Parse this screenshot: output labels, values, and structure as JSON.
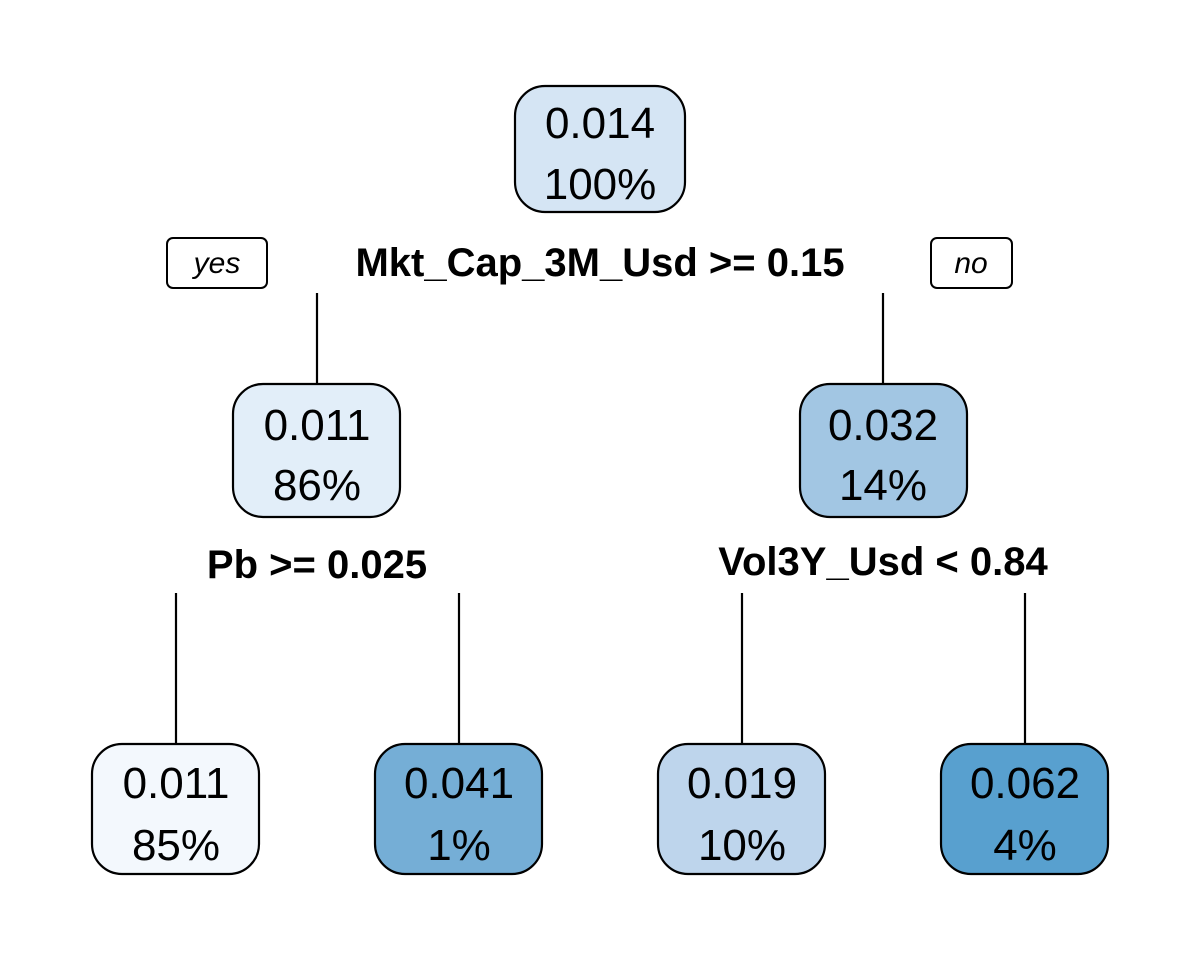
{
  "tree": {
    "yes_label": "yes",
    "no_label": "no",
    "root": {
      "value": "0.014",
      "percent": "100%",
      "color": "#d5e5f4",
      "split": "Mkt_Cap_3M_Usd >= 0.15"
    },
    "left": {
      "value": "0.011",
      "percent": "86%",
      "color": "#e2eef9",
      "split": "Pb >= 0.025"
    },
    "right": {
      "value": "0.032",
      "percent": "14%",
      "color": "#a2c6e3",
      "split": "Vol3Y_Usd < 0.84"
    },
    "leaves": [
      {
        "value": "0.011",
        "percent": "85%",
        "color": "#f3f8fd"
      },
      {
        "value": "0.041",
        "percent": "1%",
        "color": "#75aed6"
      },
      {
        "value": "0.019",
        "percent": "10%",
        "color": "#bed5ec"
      },
      {
        "value": "0.062",
        "percent": "4%",
        "color": "#58a0cf"
      }
    ]
  }
}
